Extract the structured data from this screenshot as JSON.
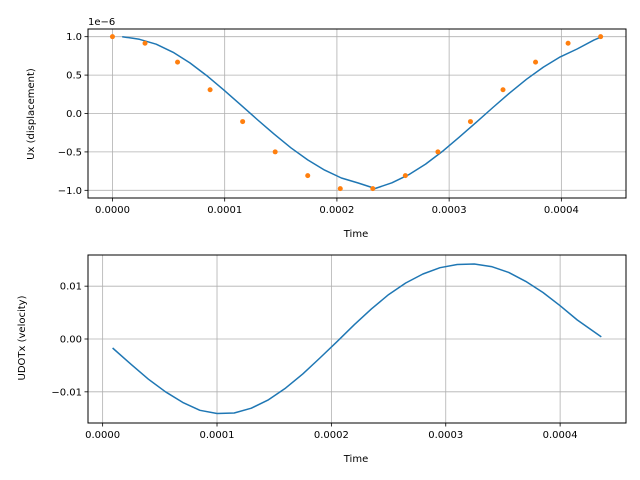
{
  "chart_data": [
    {
      "type": "line",
      "xlabel": "Time",
      "ylabel": "Ux (displacement)",
      "offset_text": "1e−6",
      "xlim": [
        -2.18e-05,
        0.0004576
      ],
      "ylim": [
        -1.1,
        1.1
      ],
      "x_ticks": [
        0.0,
        0.0001,
        0.0002,
        0.0003,
        0.0004
      ],
      "x_tick_labels": [
        "0.0000",
        "0.0001",
        "0.0002",
        "0.0003",
        "0.0004"
      ],
      "y_ticks": [
        -1.0,
        -0.5,
        0.0,
        0.5,
        1.0
      ],
      "y_tick_labels": [
        "−1.0",
        "−0.5",
        "0.0",
        "0.5",
        "1.0"
      ],
      "grid": true,
      "series": [
        {
          "kind": "line",
          "color": "#1f77b4",
          "x": [
            8.7e-06,
            2.4e-05,
            3.9e-05,
            5.4e-05,
            6.9e-05,
            8.4e-05,
            9.9e-05,
            0.000114,
            0.000129,
            0.000144,
            0.000159,
            0.000174,
            0.000189,
            0.000204,
            0.000219,
            0.000234,
            0.000249,
            0.000264,
            0.000279,
            0.000294,
            0.000309,
            0.000324,
            0.000339,
            0.000354,
            0.000369,
            0.000384,
            0.000399,
            0.000414,
            0.000429,
            0.000436
          ],
          "y": [
            1.0,
            0.966,
            0.902,
            0.797,
            0.659,
            0.493,
            0.309,
            0.116,
            -0.078,
            -0.268,
            -0.446,
            -0.604,
            -0.737,
            -0.839,
            -0.905,
            -0.976,
            -0.902,
            -0.797,
            -0.659,
            -0.493,
            -0.309,
            -0.116,
            0.078,
            0.268,
            0.446,
            0.604,
            0.737,
            0.839,
            0.955,
            1.0
          ]
        },
        {
          "kind": "scatter",
          "color": "#ff7f0e",
          "x": [
            0.0,
            2.9e-05,
            5.8e-05,
            8.7e-05,
            0.000116,
            0.000145,
            0.000174,
            0.000203,
            0.000232,
            0.000261,
            0.00029,
            0.000319,
            0.000348,
            0.000377,
            0.000406,
            0.000435
          ],
          "y": [
            1.0,
            0.914,
            0.669,
            0.309,
            -0.105,
            -0.5,
            -0.809,
            -0.978,
            -0.978,
            -0.809,
            -0.5,
            -0.105,
            0.309,
            0.669,
            0.914,
            1.0
          ]
        }
      ]
    },
    {
      "type": "line",
      "xlabel": "Time",
      "ylabel": "UDOTx (velocity)",
      "xlim": [
        -1.28e-05,
        0.0004576
      ],
      "ylim": [
        -0.0159,
        0.0159
      ],
      "x_ticks": [
        0.0,
        0.0001,
        0.0002,
        0.0003,
        0.0004
      ],
      "x_tick_labels": [
        "0.0000",
        "0.0001",
        "0.0002",
        "0.0003",
        "0.0004"
      ],
      "y_ticks": [
        -0.01,
        0.0,
        0.01
      ],
      "y_tick_labels": [
        "−0.01",
        "0.00",
        "0.01"
      ],
      "grid": true,
      "series": [
        {
          "kind": "line",
          "color": "#1f77b4",
          "x": [
            8.7e-06,
            2.5e-05,
            4e-05,
            5.5e-05,
            7e-05,
            8.5e-05,
            0.0001,
            0.000115,
            0.00013,
            0.000145,
            0.00016,
            0.000175,
            0.00019,
            0.000205,
            0.00022,
            0.000235,
            0.00025,
            0.000265,
            0.00028,
            0.000295,
            0.00031,
            0.000325,
            0.00034,
            0.000355,
            0.00037,
            0.000385,
            0.0004,
            0.000415,
            0.000436
          ],
          "y": [
            -0.0017,
            -0.0048,
            -0.0076,
            -0.01,
            -0.012,
            -0.0135,
            -0.0141,
            -0.014,
            -0.0131,
            -0.0115,
            -0.0093,
            -0.0066,
            -0.0036,
            -0.0005,
            0.0027,
            0.0057,
            0.0084,
            0.0106,
            0.0123,
            0.0135,
            0.0141,
            0.0142,
            0.0137,
            0.0126,
            0.0109,
            0.0088,
            0.0063,
            0.0036,
            0.0004
          ]
        }
      ]
    }
  ]
}
